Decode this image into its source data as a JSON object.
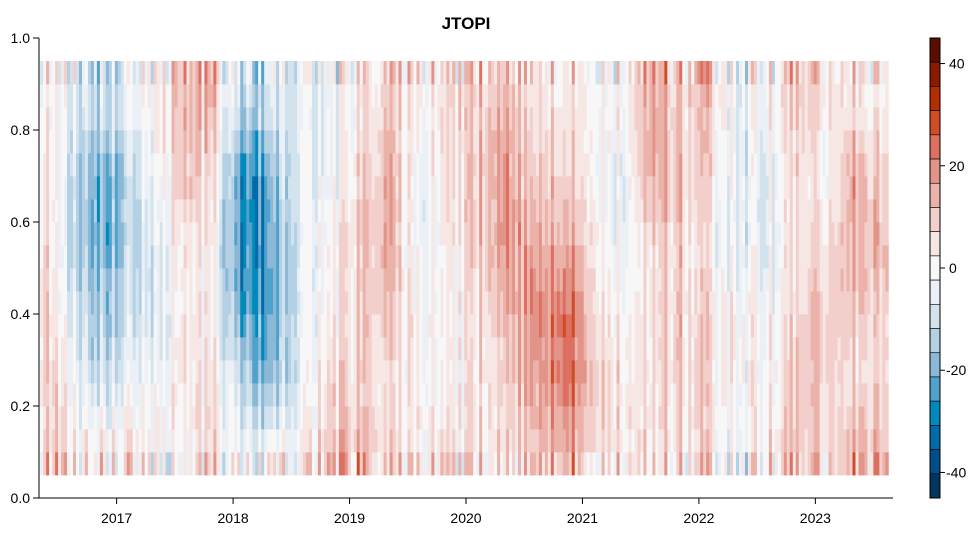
{
  "chart_data": {
    "type": "heatmap",
    "title": "JTOPI",
    "xlabel": "",
    "ylabel": "",
    "x_ticks": [
      "2017",
      "2018",
      "2019",
      "2020",
      "2021",
      "2022",
      "2023"
    ],
    "y_ticks": [
      "0.0",
      "0.2",
      "0.4",
      "0.6",
      "0.8",
      "1.0"
    ],
    "xlim": [
      "2016-05",
      "2023-09"
    ],
    "ylim": [
      0,
      1
    ],
    "y_data_range": [
      0.05,
      0.95
    ],
    "grid": false,
    "colorbar": {
      "ticks": [
        "40",
        "20",
        "0",
        "-20",
        "-40"
      ],
      "tick_values": [
        40,
        20,
        0,
        -20,
        -40
      ],
      "range": [
        -45,
        45
      ],
      "levels": 19,
      "colors": [
        "#5a0d00",
        "#8b1a00",
        "#b52e00",
        "#d04c26",
        "#dd7060",
        "#e39488",
        "#ebb2aa",
        "#f2cfcb",
        "#f6e6e4",
        "#f7f7f7",
        "#eaf0f5",
        "#d3e3ee",
        "#b4d0e4",
        "#8ab8d6",
        "#4fa2cc",
        "#0089bb",
        "#006ba8",
        "#004f88",
        "#003560"
      ]
    },
    "y": [
      0.1,
      0.25,
      0.4,
      0.55,
      0.7,
      0.85
    ],
    "x": [
      "2016-05",
      "2016-08",
      "2016-11",
      "2017-02",
      "2017-05",
      "2017-08",
      "2017-11",
      "2018-02",
      "2018-05",
      "2018-08",
      "2018-11",
      "2019-02",
      "2019-05",
      "2019-08",
      "2019-11",
      "2020-02",
      "2020-05",
      "2020-08",
      "2020-11",
      "2021-02",
      "2021-05",
      "2021-08",
      "2021-11",
      "2022-02",
      "2022-05",
      "2022-08",
      "2022-11",
      "2023-02",
      "2023-05",
      "2023-08"
    ],
    "z_by_x": [
      [
        10,
        10,
        12,
        10,
        8,
        5
      ],
      [
        5,
        0,
        -5,
        -10,
        -10,
        -5
      ],
      [
        5,
        -10,
        -15,
        -20,
        -20,
        -10
      ],
      [
        5,
        -5,
        -10,
        -15,
        -15,
        -5
      ],
      [
        5,
        0,
        -5,
        -5,
        0,
        5
      ],
      [
        0,
        5,
        5,
        5,
        12,
        15
      ],
      [
        5,
        5,
        0,
        0,
        5,
        10
      ],
      [
        -5,
        -15,
        -25,
        -30,
        -30,
        -15
      ],
      [
        0,
        -20,
        -25,
        -25,
        -20,
        -10
      ],
      [
        0,
        -5,
        -5,
        -5,
        -5,
        -5
      ],
      [
        10,
        5,
        0,
        0,
        -5,
        -5
      ],
      [
        15,
        10,
        10,
        10,
        8,
        5
      ],
      [
        10,
        5,
        12,
        15,
        15,
        10
      ],
      [
        0,
        0,
        0,
        -5,
        -5,
        0
      ],
      [
        5,
        0,
        0,
        0,
        5,
        5
      ],
      [
        5,
        5,
        5,
        10,
        10,
        10
      ],
      [
        10,
        10,
        15,
        20,
        20,
        15
      ],
      [
        10,
        15,
        20,
        15,
        10,
        5
      ],
      [
        15,
        25,
        25,
        15,
        10,
        5
      ],
      [
        10,
        15,
        12,
        10,
        5,
        5
      ],
      [
        5,
        5,
        0,
        -5,
        -5,
        0
      ],
      [
        5,
        5,
        5,
        5,
        15,
        15
      ],
      [
        5,
        10,
        10,
        10,
        12,
        10
      ],
      [
        5,
        5,
        5,
        0,
        5,
        10
      ],
      [
        -5,
        0,
        0,
        -5,
        -5,
        -5
      ],
      [
        5,
        0,
        0,
        -5,
        -5,
        0
      ],
      [
        10,
        10,
        5,
        5,
        5,
        10
      ],
      [
        5,
        10,
        10,
        5,
        0,
        5
      ],
      [
        15,
        5,
        10,
        15,
        15,
        5
      ],
      [
        10,
        5,
        5,
        10,
        5,
        0
      ]
    ]
  }
}
